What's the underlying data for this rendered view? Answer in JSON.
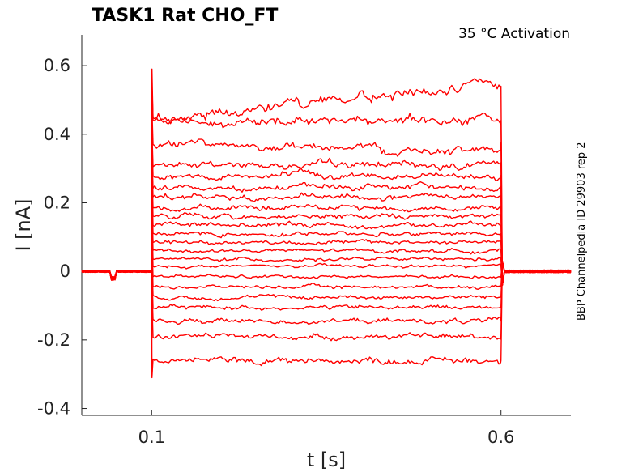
{
  "chart_data": {
    "type": "line",
    "title": "TASK1  Rat  CHO_FT",
    "annotation": "35 °C  Activation",
    "side_label": "BBP Channelpedia ID 29903 rep 2",
    "xlabel": "t [s]",
    "ylabel": "I [nA]",
    "xlim": [
      0.0,
      0.7
    ],
    "ylim": [
      -0.42,
      0.69
    ],
    "x_ticks": [
      0.1,
      0.6
    ],
    "x_tick_labels": [
      "0.1",
      "0.6"
    ],
    "y_ticks": [
      0.6,
      0.4,
      0.2,
      0.0,
      -0.2,
      -0.4
    ],
    "y_tick_labels": [
      "0.6",
      "0.4",
      "0.2",
      "0",
      "-0.2",
      "-0.4"
    ],
    "grid": false,
    "color": "#ff0000",
    "step_on": 0.1,
    "step_off": 0.6,
    "baseline": 0.0,
    "series_levels": [
      0.54,
      0.44,
      0.375,
      0.31,
      0.28,
      0.245,
      0.215,
      0.185,
      0.16,
      0.135,
      0.11,
      0.085,
      0.06,
      0.035,
      0.015,
      -0.015,
      -0.045,
      -0.075,
      -0.105,
      -0.145,
      -0.19,
      -0.26
    ]
  }
}
